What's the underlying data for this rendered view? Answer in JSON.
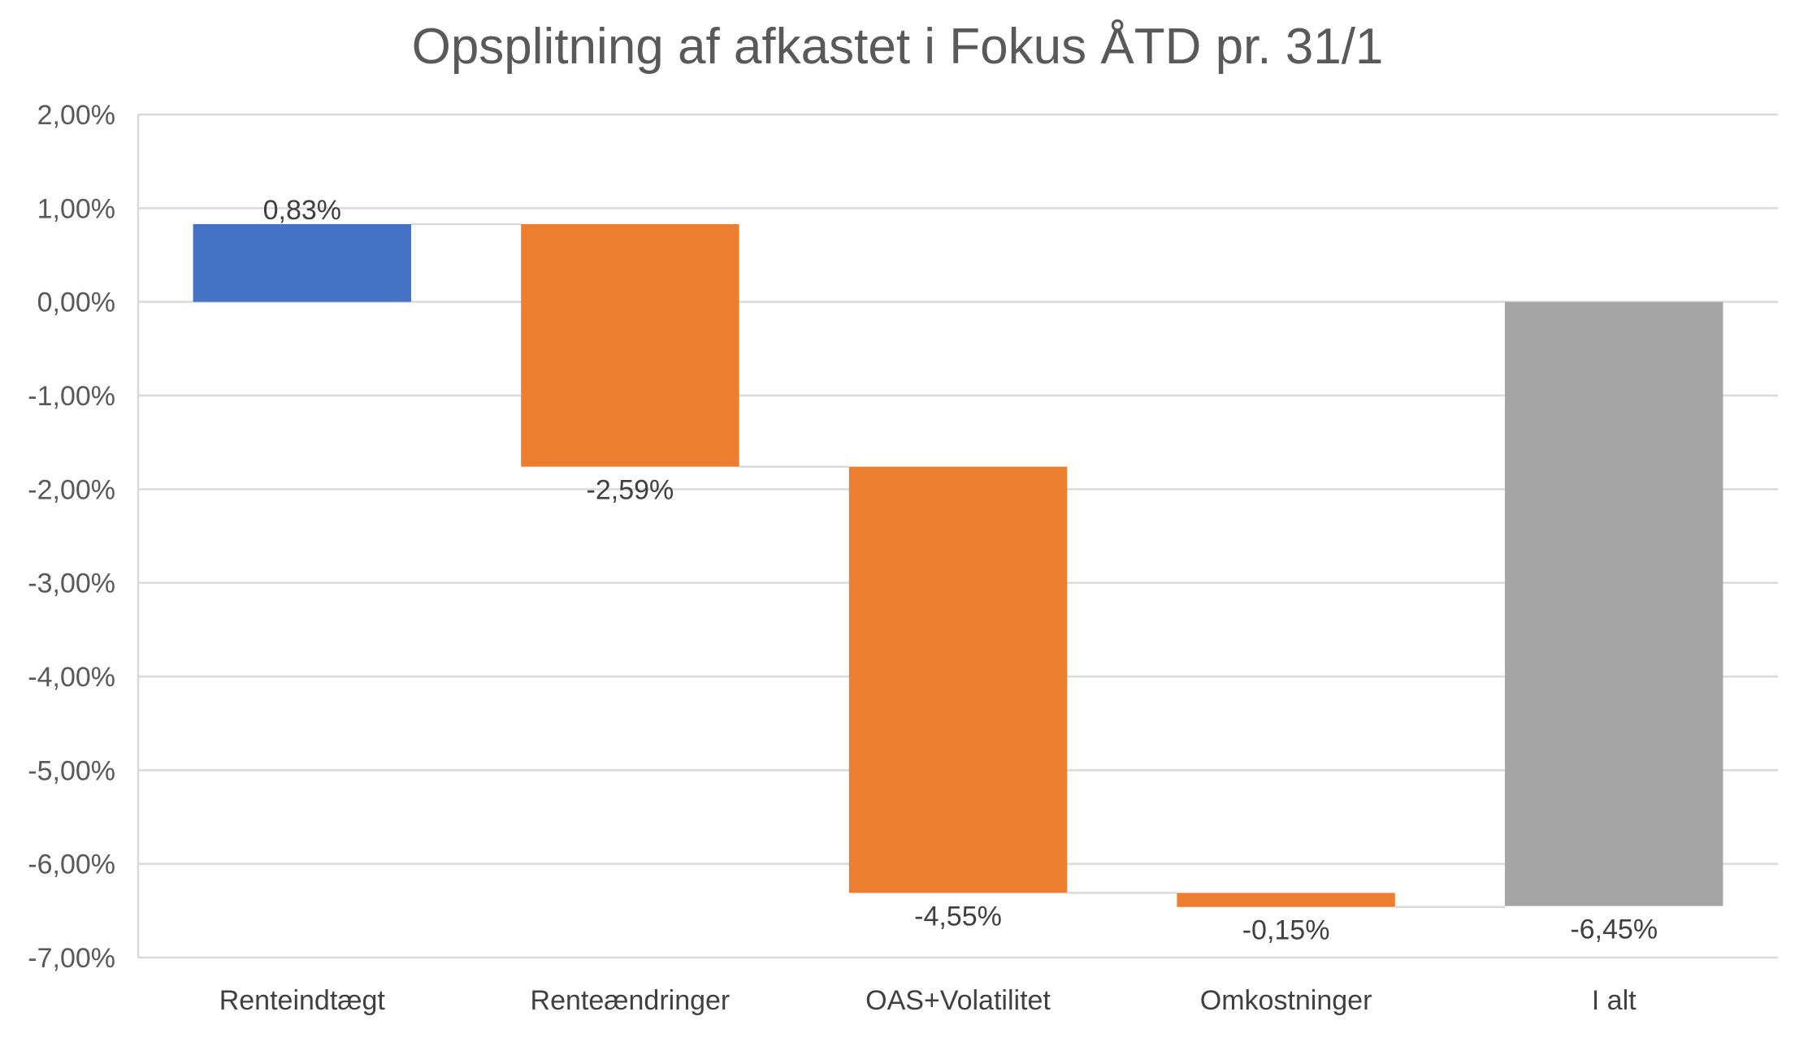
{
  "chart_data": {
    "type": "bar",
    "subtype": "waterfall",
    "title": "Opsplitning af afkastet i Fokus ÅTD pr. 31/1",
    "categories": [
      "Renteindtægt",
      "Renteændringer",
      "OAS+Volatilitet",
      "Omkostninger",
      "I alt"
    ],
    "values": [
      0.83,
      -2.59,
      -4.55,
      -0.15,
      -6.45
    ],
    "value_labels": [
      "0,83%",
      "-2,59%",
      "-4,55%",
      "-0,15%",
      "-6,45%"
    ],
    "bar_kinds": [
      "increase",
      "decrease",
      "decrease",
      "decrease",
      "total"
    ],
    "ylim": [
      -7,
      2
    ],
    "yticks": [
      2,
      1,
      0,
      -1,
      -2,
      -3,
      -4,
      -5,
      -6,
      -7
    ],
    "ytick_labels": [
      "2,00%",
      "1,00%",
      "0,00%",
      "-1,00%",
      "-2,00%",
      "-3,00%",
      "-4,00%",
      "-5,00%",
      "-6,00%",
      "-7,00%"
    ],
    "xlabel": "",
    "ylabel": "",
    "grid": true,
    "legend": "none",
    "colors": {
      "increase": "#4472C4",
      "decrease": "#ED7D31",
      "total": "#A5A5A5",
      "grid": "#D9D9D9",
      "connector": "#D9D9D9"
    }
  }
}
